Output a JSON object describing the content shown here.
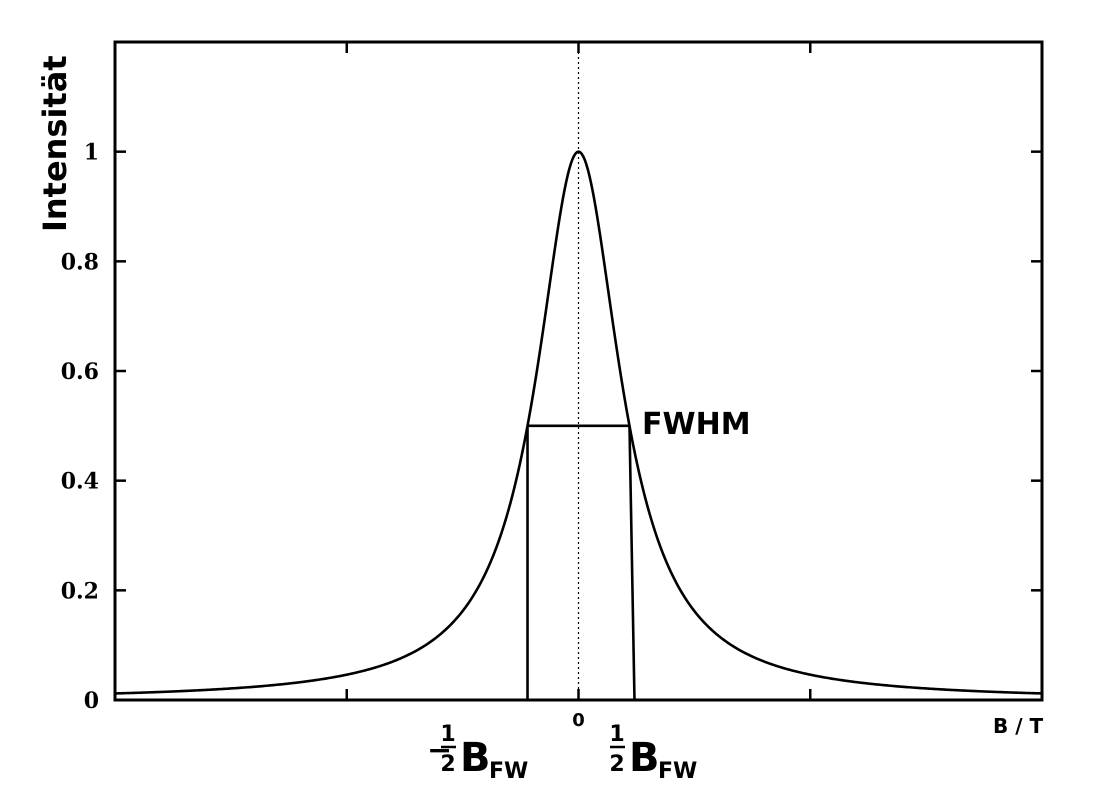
{
  "chart_data": {
    "type": "line",
    "title": "",
    "xlabel": "B / T",
    "ylabel": "Intensität",
    "xlim": [
      -1,
      1
    ],
    "ylim": [
      0,
      1.2
    ],
    "grid": false,
    "y_ticks": [
      0,
      0.2,
      0.4,
      0.6,
      0.8,
      1
    ],
    "y_tick_labels": [
      "0",
      "0.2",
      "0.4",
      "0.6",
      "0.8",
      "1"
    ],
    "x_ticks": [
      -0.5,
      0,
      0.5
    ],
    "x_tick_labels": [
      "",
      "0",
      ""
    ],
    "center_line_x": 0,
    "series": [
      {
        "curve": "lorentzian",
        "center": 0,
        "amplitude": 1,
        "half_width_half_max": 0.11,
        "x": [
          -1,
          -0.8,
          -0.6,
          -0.4,
          -0.3,
          -0.2,
          -0.15,
          -0.11,
          -0.08,
          -0.05,
          -0.03,
          0,
          0.03,
          0.05,
          0.08,
          0.11,
          0.15,
          0.2,
          0.3,
          0.4,
          0.6,
          0.8,
          1
        ],
        "y": [
          0.012,
          0.019,
          0.033,
          0.07,
          0.12,
          0.23,
          0.35,
          0.5,
          0.65,
          0.83,
          0.93,
          1,
          0.93,
          0.83,
          0.65,
          0.5,
          0.35,
          0.23,
          0.12,
          0.07,
          0.033,
          0.019,
          0.012
        ]
      }
    ],
    "annotations": {
      "fwhm_label": "FWHM",
      "half_max_y": 0.5,
      "marker_left_x": -0.11,
      "marker_right_x": 0.11,
      "marker_left_label": {
        "sign": "−",
        "fraction_num": "1",
        "fraction_den": "2",
        "symbol": "B",
        "subscript": "FW"
      },
      "marker_right_label": {
        "sign": "",
        "fraction_num": "1",
        "fraction_den": "2",
        "symbol": "B",
        "subscript": "FW"
      }
    }
  }
}
